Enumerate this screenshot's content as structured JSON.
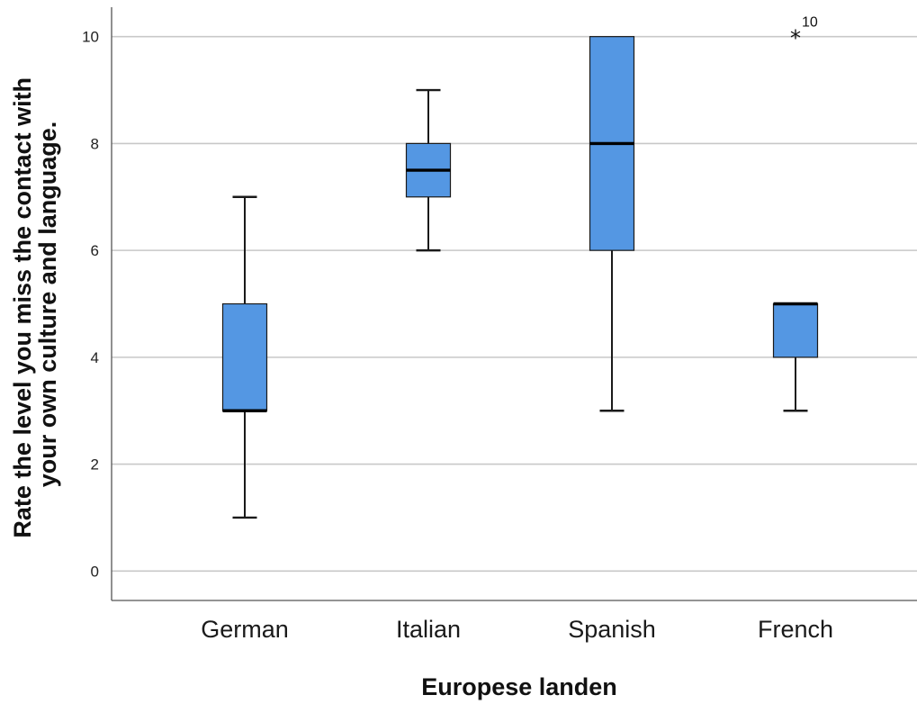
{
  "chart_data": {
    "type": "boxplot",
    "xlabel": "Europese landen",
    "ylabel_lines": [
      "Rate the level you miss the contact with",
      "your own culture and language."
    ],
    "ylim": [
      -0.55,
      10.55
    ],
    "yticks": [
      0,
      2,
      4,
      6,
      8,
      10
    ],
    "ytick_labels": [
      "0",
      "2",
      "4",
      "6",
      "8",
      "10"
    ],
    "grid": true,
    "categories": [
      "German",
      "Italian",
      "Spanish",
      "French"
    ],
    "series": [
      {
        "category": "German",
        "whisker_low": 1,
        "q1": 3,
        "median": 3,
        "q3": 5,
        "whisker_high": 7,
        "outliers": []
      },
      {
        "category": "Italian",
        "whisker_low": 6,
        "q1": 7,
        "median": 7.5,
        "q3": 8,
        "whisker_high": 9,
        "outliers": []
      },
      {
        "category": "Spanish",
        "whisker_low": 3,
        "q1": 6,
        "median": 8,
        "q3": 10,
        "whisker_high": 10,
        "outliers": []
      },
      {
        "category": "French",
        "whisker_low": 3,
        "q1": 4,
        "median": 5,
        "q3": 5,
        "whisker_high": 5,
        "outliers": [
          {
            "value": 10,
            "label": "10",
            "marker": "*"
          }
        ]
      }
    ],
    "colors": {
      "box_fill": "#5497e3",
      "box_stroke": "#1a1a1a",
      "gridline": "#c8c8c8",
      "axis": "#555555"
    }
  }
}
